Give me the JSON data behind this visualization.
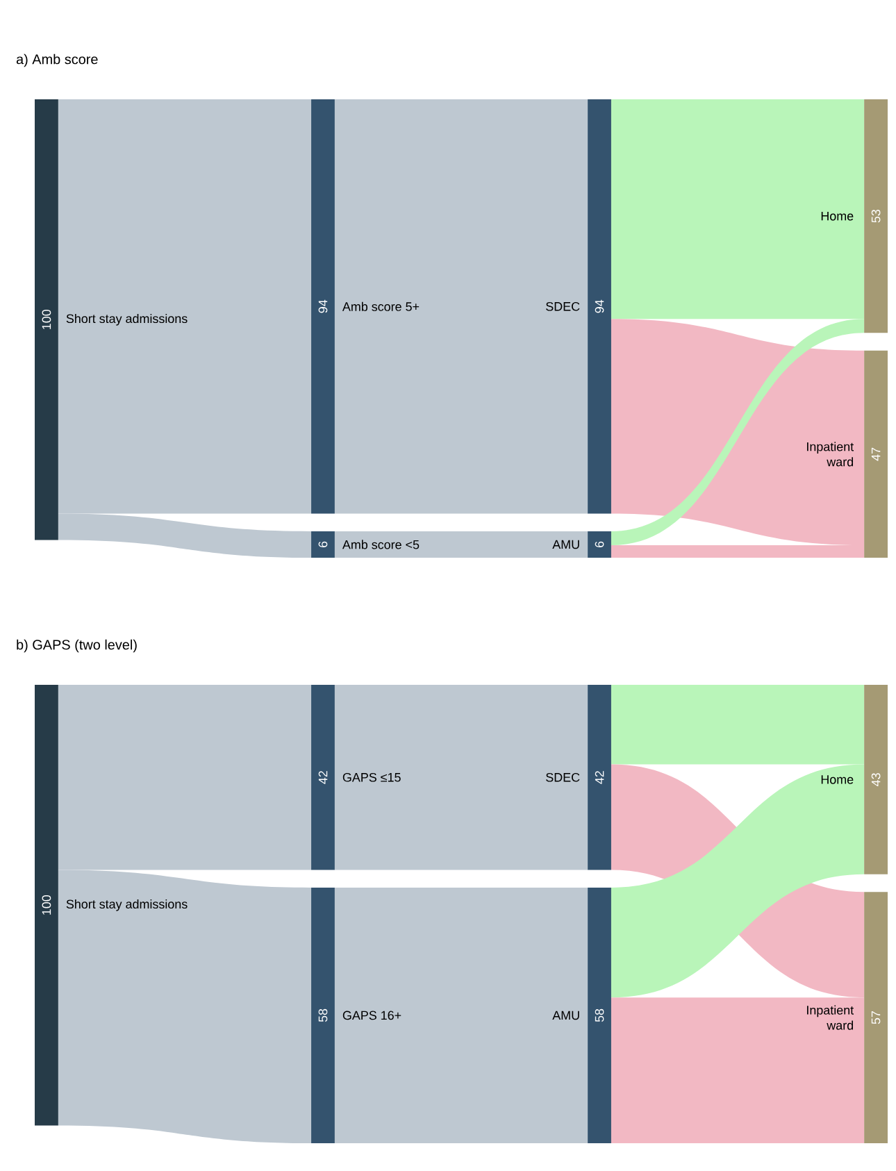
{
  "chart_data": [
    {
      "type": "other",
      "title": "a) Amb score",
      "categories": [
        "Short stay admissions",
        "Amb score 5+",
        "Amb score <5",
        "SDEC",
        "AMU",
        "Home",
        "Inpatient ward"
      ],
      "values": [
        100,
        94,
        6,
        94,
        6,
        53,
        47
      ],
      "data_labels": true
    },
    {
      "type": "other",
      "title": "b) GAPS (two level)",
      "categories": [
        "Short stay admissions",
        "GAPS ≤15",
        "GAPS 16+",
        "SDEC",
        "AMU",
        "Home",
        "Inpatient ward"
      ],
      "values": [
        100,
        42,
        58,
        42,
        58,
        43,
        57
      ],
      "data_labels": true
    }
  ]
}
